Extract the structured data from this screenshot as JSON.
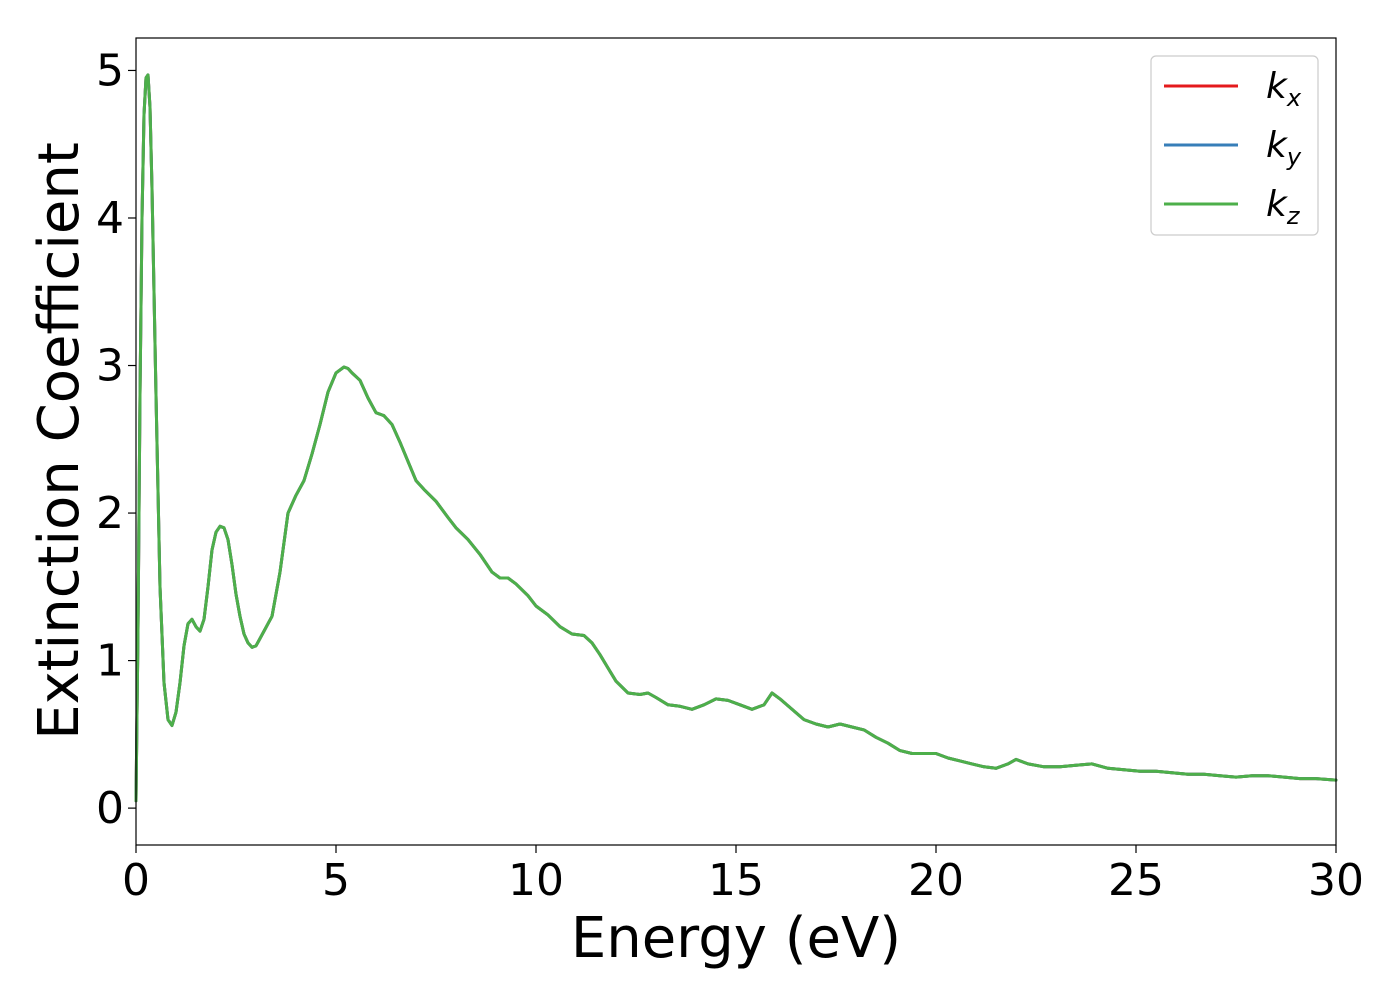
{
  "chart_data": {
    "type": "line",
    "title": "",
    "xlabel": "Energy (eV)",
    "ylabel": "Extinction Coefficient",
    "xlim": [
      0,
      30
    ],
    "ylim": [
      -0.25,
      5.22
    ],
    "xticks": [
      0,
      5,
      10,
      15,
      20,
      25,
      30
    ],
    "yticks": [
      0,
      1,
      2,
      3,
      4,
      5
    ],
    "grid": false,
    "legend_position": "top-right",
    "series": [
      {
        "name": "k",
        "subscript": "x",
        "color": "#e41a1c",
        "x": [
          0,
          0.05,
          0.1,
          0.15,
          0.2,
          0.25,
          0.3,
          0.35,
          0.4,
          0.5,
          0.6,
          0.7,
          0.8,
          0.9,
          1.0,
          1.1,
          1.2,
          1.3,
          1.4,
          1.5,
          1.6,
          1.7,
          1.8,
          1.9,
          2.0,
          2.1,
          2.2,
          2.3,
          2.4,
          2.5,
          2.6,
          2.7,
          2.8,
          2.9,
          3.0,
          3.1,
          3.2,
          3.3,
          3.4,
          3.6,
          3.8,
          4.0,
          4.2,
          4.4,
          4.6,
          4.8,
          5.0,
          5.2,
          5.3,
          5.4,
          5.6,
          5.8,
          6.0,
          6.2,
          6.4,
          6.6,
          6.8,
          7.0,
          7.2,
          7.5,
          7.8,
          8.0,
          8.3,
          8.6,
          8.9,
          9.1,
          9.3,
          9.5,
          9.8,
          10.0,
          10.3,
          10.6,
          10.9,
          11.2,
          11.4,
          11.6,
          11.8,
          12.0,
          12.3,
          12.6,
          12.8,
          13.0,
          13.3,
          13.6,
          13.9,
          14.2,
          14.5,
          14.8,
          15.1,
          15.4,
          15.7,
          15.9,
          16.1,
          16.4,
          16.7,
          17.0,
          17.3,
          17.6,
          17.9,
          18.2,
          18.5,
          18.8,
          19.1,
          19.4,
          19.7,
          20.0,
          20.3,
          20.6,
          20.9,
          21.2,
          21.5,
          21.8,
          22.0,
          22.3,
          22.7,
          23.1,
          23.5,
          23.9,
          24.3,
          24.7,
          25.1,
          25.5,
          25.9,
          26.3,
          26.7,
          27.1,
          27.5,
          27.9,
          28.3,
          28.7,
          29.1,
          29.5,
          30.0
        ],
        "values": [
          0.05,
          1.2,
          2.8,
          4.0,
          4.7,
          4.95,
          4.97,
          4.75,
          4.2,
          2.8,
          1.5,
          0.85,
          0.6,
          0.56,
          0.65,
          0.85,
          1.1,
          1.25,
          1.28,
          1.23,
          1.2,
          1.28,
          1.5,
          1.75,
          1.87,
          1.91,
          1.9,
          1.82,
          1.65,
          1.45,
          1.3,
          1.18,
          1.12,
          1.09,
          1.1,
          1.15,
          1.2,
          1.25,
          1.3,
          1.6,
          2.0,
          2.12,
          2.22,
          2.4,
          2.6,
          2.82,
          2.95,
          2.99,
          2.98,
          2.95,
          2.9,
          2.78,
          2.68,
          2.66,
          2.6,
          2.48,
          2.35,
          2.22,
          2.16,
          2.08,
          1.97,
          1.9,
          1.82,
          1.72,
          1.6,
          1.56,
          1.56,
          1.52,
          1.44,
          1.37,
          1.31,
          1.23,
          1.18,
          1.17,
          1.12,
          1.04,
          0.95,
          0.86,
          0.78,
          0.77,
          0.78,
          0.75,
          0.7,
          0.69,
          0.67,
          0.7,
          0.74,
          0.73,
          0.7,
          0.67,
          0.7,
          0.78,
          0.74,
          0.67,
          0.6,
          0.57,
          0.55,
          0.57,
          0.55,
          0.53,
          0.48,
          0.44,
          0.39,
          0.37,
          0.37,
          0.37,
          0.34,
          0.32,
          0.3,
          0.28,
          0.27,
          0.3,
          0.33,
          0.3,
          0.28,
          0.28,
          0.29,
          0.3,
          0.27,
          0.26,
          0.25,
          0.25,
          0.24,
          0.23,
          0.23,
          0.22,
          0.21,
          0.22,
          0.22,
          0.21,
          0.2,
          0.2,
          0.19
        ]
      },
      {
        "name": "k",
        "subscript": "y",
        "color": "#377eb8",
        "x": [
          0,
          0.05,
          0.1,
          0.15,
          0.2,
          0.25,
          0.3,
          0.35,
          0.4,
          0.5,
          0.6,
          0.7,
          0.8,
          0.9,
          1.0,
          1.1,
          1.2,
          1.3,
          1.4,
          1.5,
          1.6,
          1.7,
          1.8,
          1.9,
          2.0,
          2.1,
          2.2,
          2.3,
          2.4,
          2.5,
          2.6,
          2.7,
          2.8,
          2.9,
          3.0,
          3.1,
          3.2,
          3.3,
          3.4,
          3.6,
          3.8,
          4.0,
          4.2,
          4.4,
          4.6,
          4.8,
          5.0,
          5.2,
          5.3,
          5.4,
          5.6,
          5.8,
          6.0,
          6.2,
          6.4,
          6.6,
          6.8,
          7.0,
          7.2,
          7.5,
          7.8,
          8.0,
          8.3,
          8.6,
          8.9,
          9.1,
          9.3,
          9.5,
          9.8,
          10.0,
          10.3,
          10.6,
          10.9,
          11.2,
          11.4,
          11.6,
          11.8,
          12.0,
          12.3,
          12.6,
          12.8,
          13.0,
          13.3,
          13.6,
          13.9,
          14.2,
          14.5,
          14.8,
          15.1,
          15.4,
          15.7,
          15.9,
          16.1,
          16.4,
          16.7,
          17.0,
          17.3,
          17.6,
          17.9,
          18.2,
          18.5,
          18.8,
          19.1,
          19.4,
          19.7,
          20.0,
          20.3,
          20.6,
          20.9,
          21.2,
          21.5,
          21.8,
          22.0,
          22.3,
          22.7,
          23.1,
          23.5,
          23.9,
          24.3,
          24.7,
          25.1,
          25.5,
          25.9,
          26.3,
          26.7,
          27.1,
          27.5,
          27.9,
          28.3,
          28.7,
          29.1,
          29.5,
          30.0
        ],
        "values": [
          0.05,
          1.2,
          2.8,
          4.0,
          4.7,
          4.95,
          4.97,
          4.75,
          4.2,
          2.8,
          1.5,
          0.85,
          0.6,
          0.56,
          0.65,
          0.85,
          1.1,
          1.25,
          1.28,
          1.23,
          1.2,
          1.28,
          1.5,
          1.75,
          1.87,
          1.91,
          1.9,
          1.82,
          1.65,
          1.45,
          1.3,
          1.18,
          1.12,
          1.09,
          1.1,
          1.15,
          1.2,
          1.25,
          1.3,
          1.6,
          2.0,
          2.12,
          2.22,
          2.4,
          2.6,
          2.82,
          2.95,
          2.99,
          2.98,
          2.95,
          2.9,
          2.78,
          2.68,
          2.66,
          2.6,
          2.48,
          2.35,
          2.22,
          2.16,
          2.08,
          1.97,
          1.9,
          1.82,
          1.72,
          1.6,
          1.56,
          1.56,
          1.52,
          1.44,
          1.37,
          1.31,
          1.23,
          1.18,
          1.17,
          1.12,
          1.04,
          0.95,
          0.86,
          0.78,
          0.77,
          0.78,
          0.75,
          0.7,
          0.69,
          0.67,
          0.7,
          0.74,
          0.73,
          0.7,
          0.67,
          0.7,
          0.78,
          0.74,
          0.67,
          0.6,
          0.57,
          0.55,
          0.57,
          0.55,
          0.53,
          0.48,
          0.44,
          0.39,
          0.37,
          0.37,
          0.37,
          0.34,
          0.32,
          0.3,
          0.28,
          0.27,
          0.3,
          0.33,
          0.3,
          0.28,
          0.28,
          0.29,
          0.3,
          0.27,
          0.26,
          0.25,
          0.25,
          0.24,
          0.23,
          0.23,
          0.22,
          0.21,
          0.22,
          0.22,
          0.21,
          0.2,
          0.2,
          0.19
        ]
      },
      {
        "name": "k",
        "subscript": "z",
        "color": "#4daf4a",
        "x": [
          0,
          0.05,
          0.1,
          0.15,
          0.2,
          0.25,
          0.3,
          0.35,
          0.4,
          0.5,
          0.6,
          0.7,
          0.8,
          0.9,
          1.0,
          1.1,
          1.2,
          1.3,
          1.4,
          1.5,
          1.6,
          1.7,
          1.8,
          1.9,
          2.0,
          2.1,
          2.2,
          2.3,
          2.4,
          2.5,
          2.6,
          2.7,
          2.8,
          2.9,
          3.0,
          3.1,
          3.2,
          3.3,
          3.4,
          3.6,
          3.8,
          4.0,
          4.2,
          4.4,
          4.6,
          4.8,
          5.0,
          5.2,
          5.3,
          5.4,
          5.6,
          5.8,
          6.0,
          6.2,
          6.4,
          6.6,
          6.8,
          7.0,
          7.2,
          7.5,
          7.8,
          8.0,
          8.3,
          8.6,
          8.9,
          9.1,
          9.3,
          9.5,
          9.8,
          10.0,
          10.3,
          10.6,
          10.9,
          11.2,
          11.4,
          11.6,
          11.8,
          12.0,
          12.3,
          12.6,
          12.8,
          13.0,
          13.3,
          13.6,
          13.9,
          14.2,
          14.5,
          14.8,
          15.1,
          15.4,
          15.7,
          15.9,
          16.1,
          16.4,
          16.7,
          17.0,
          17.3,
          17.6,
          17.9,
          18.2,
          18.5,
          18.8,
          19.1,
          19.4,
          19.7,
          20.0,
          20.3,
          20.6,
          20.9,
          21.2,
          21.5,
          21.8,
          22.0,
          22.3,
          22.7,
          23.1,
          23.5,
          23.9,
          24.3,
          24.7,
          25.1,
          25.5,
          25.9,
          26.3,
          26.7,
          27.1,
          27.5,
          27.9,
          28.3,
          28.7,
          29.1,
          29.5,
          30.0
        ],
        "values": [
          0.05,
          1.2,
          2.8,
          4.0,
          4.7,
          4.95,
          4.97,
          4.75,
          4.2,
          2.8,
          1.5,
          0.85,
          0.6,
          0.56,
          0.65,
          0.85,
          1.1,
          1.25,
          1.28,
          1.23,
          1.2,
          1.28,
          1.5,
          1.75,
          1.87,
          1.91,
          1.9,
          1.82,
          1.65,
          1.45,
          1.3,
          1.18,
          1.12,
          1.09,
          1.1,
          1.15,
          1.2,
          1.25,
          1.3,
          1.6,
          2.0,
          2.12,
          2.22,
          2.4,
          2.6,
          2.82,
          2.95,
          2.99,
          2.98,
          2.95,
          2.9,
          2.78,
          2.68,
          2.66,
          2.6,
          2.48,
          2.35,
          2.22,
          2.16,
          2.08,
          1.97,
          1.9,
          1.82,
          1.72,
          1.6,
          1.56,
          1.56,
          1.52,
          1.44,
          1.37,
          1.31,
          1.23,
          1.18,
          1.17,
          1.12,
          1.04,
          0.95,
          0.86,
          0.78,
          0.77,
          0.78,
          0.75,
          0.7,
          0.69,
          0.67,
          0.7,
          0.74,
          0.73,
          0.7,
          0.67,
          0.7,
          0.78,
          0.74,
          0.67,
          0.6,
          0.57,
          0.55,
          0.57,
          0.55,
          0.53,
          0.48,
          0.44,
          0.39,
          0.37,
          0.37,
          0.37,
          0.34,
          0.32,
          0.3,
          0.28,
          0.27,
          0.3,
          0.33,
          0.3,
          0.28,
          0.28,
          0.29,
          0.3,
          0.27,
          0.26,
          0.25,
          0.25,
          0.24,
          0.23,
          0.23,
          0.22,
          0.21,
          0.22,
          0.22,
          0.21,
          0.2,
          0.2,
          0.19
        ]
      }
    ]
  }
}
